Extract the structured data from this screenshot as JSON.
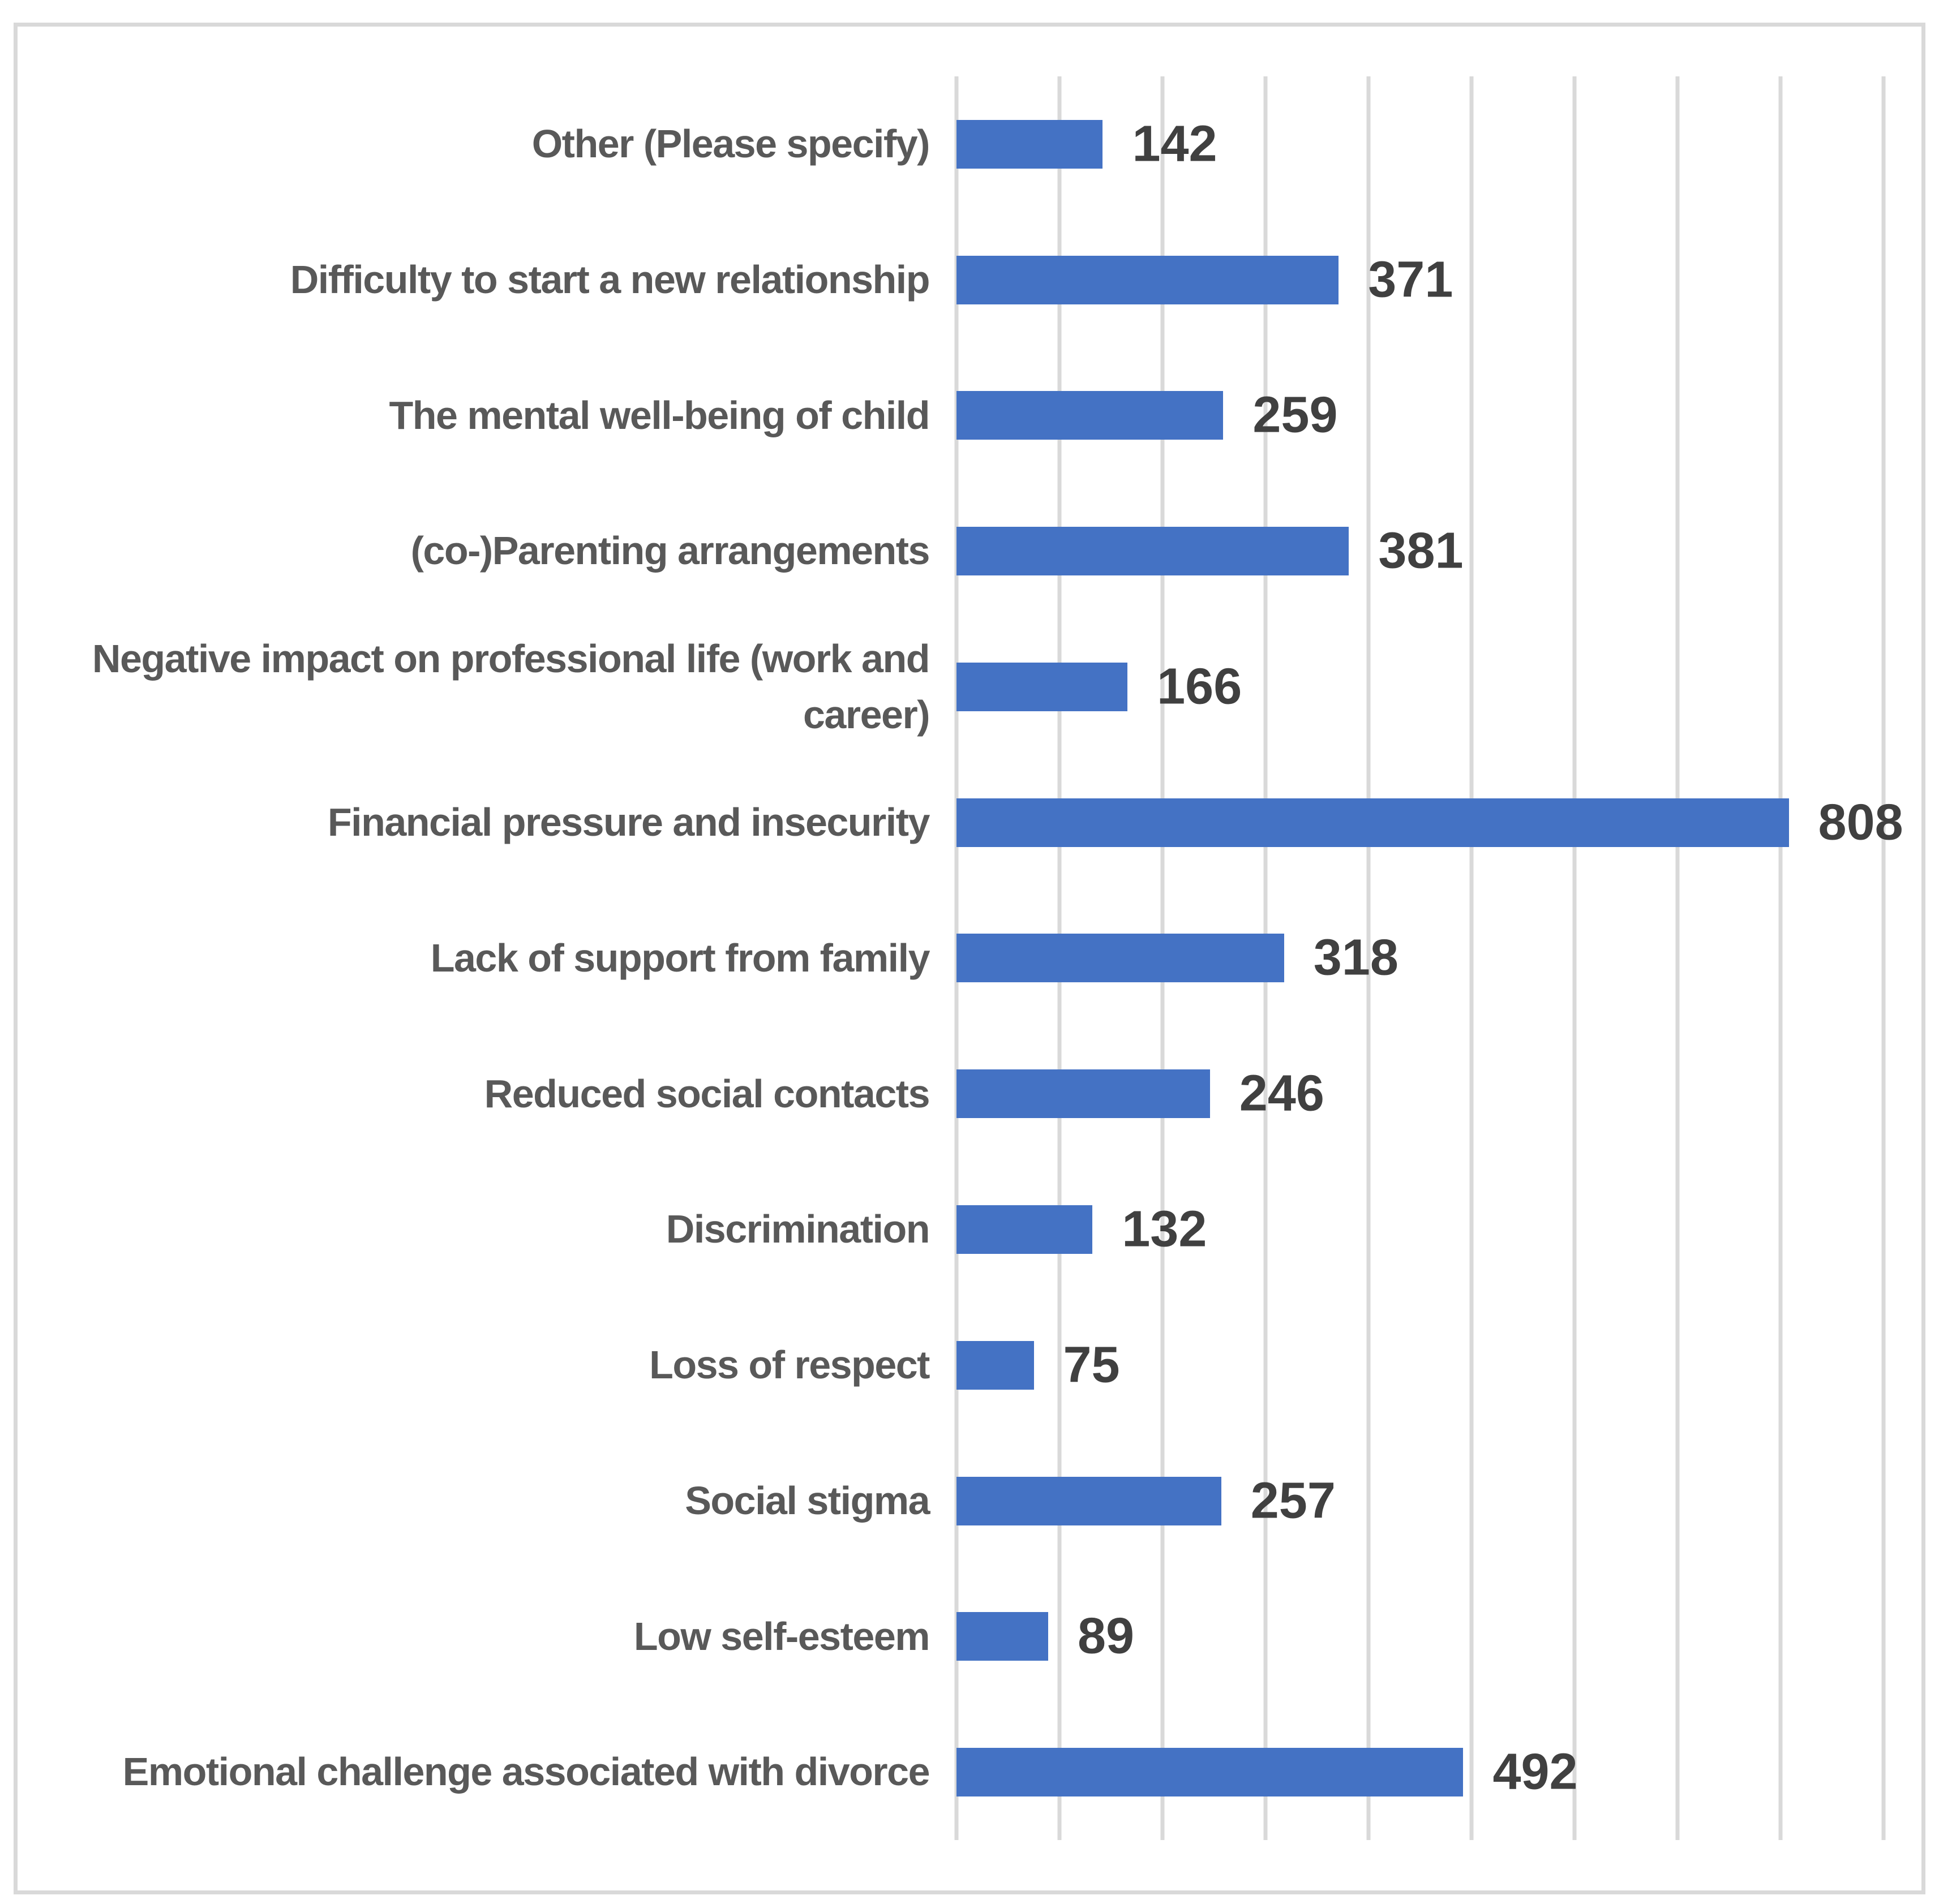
{
  "chart_data": {
    "type": "bar",
    "orientation": "horizontal",
    "title": "",
    "xlabel": "",
    "ylabel": "",
    "categories": [
      "Other (Please specify)",
      "Difficulty to start a new relationship",
      "The mental well-being of child",
      "(co-)Parenting arrangements",
      "Negative impact on professional life (work and career)",
      "Financial pressure and insecurity",
      "Lack of support from family",
      "Reduced social contacts",
      "Discrimination",
      "Loss of respect",
      "Social stigma",
      "Low self-esteem",
      "Emotional challenge associated with divorce"
    ],
    "values": [
      142,
      371,
      259,
      381,
      166,
      808,
      318,
      246,
      132,
      75,
      257,
      89,
      492
    ],
    "data_labels_shown": true,
    "xlim": [
      0,
      900
    ],
    "gridline_step": 100,
    "grid": true,
    "legend": false,
    "axis_tick_labels_shown": false,
    "colors": {
      "bar": "#4472C4",
      "gridline": "#D9D9D9",
      "frame_border": "#D9D9D9",
      "category_label": "#595959",
      "value_label": "#404040",
      "background": "#FFFFFF"
    }
  }
}
